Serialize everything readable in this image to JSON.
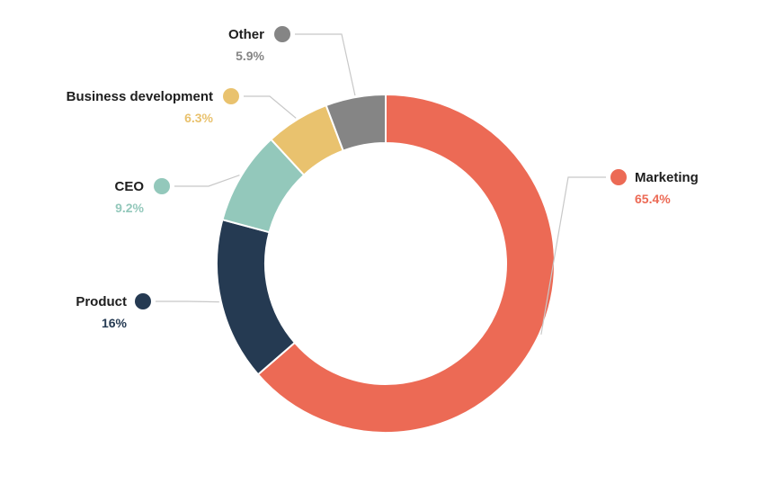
{
  "chart_data": {
    "type": "pie",
    "variant": "donut",
    "title": "",
    "legend_placement": "around",
    "slices": [
      {
        "name": "Marketing",
        "value": 65.4,
        "label": "65.4%",
        "color": "#ec6a55"
      },
      {
        "name": "Product",
        "value": 16,
        "label": "16%",
        "color": "#253a52"
      },
      {
        "name": "CEO",
        "value": 9.2,
        "label": "9.2%",
        "color": "#93c8bb"
      },
      {
        "name": "Business development",
        "value": 6.3,
        "label": "6.3%",
        "color": "#e9c26e"
      },
      {
        "name": "Other",
        "value": 5.9,
        "label": "5.9%",
        "color": "#858585"
      }
    ]
  }
}
